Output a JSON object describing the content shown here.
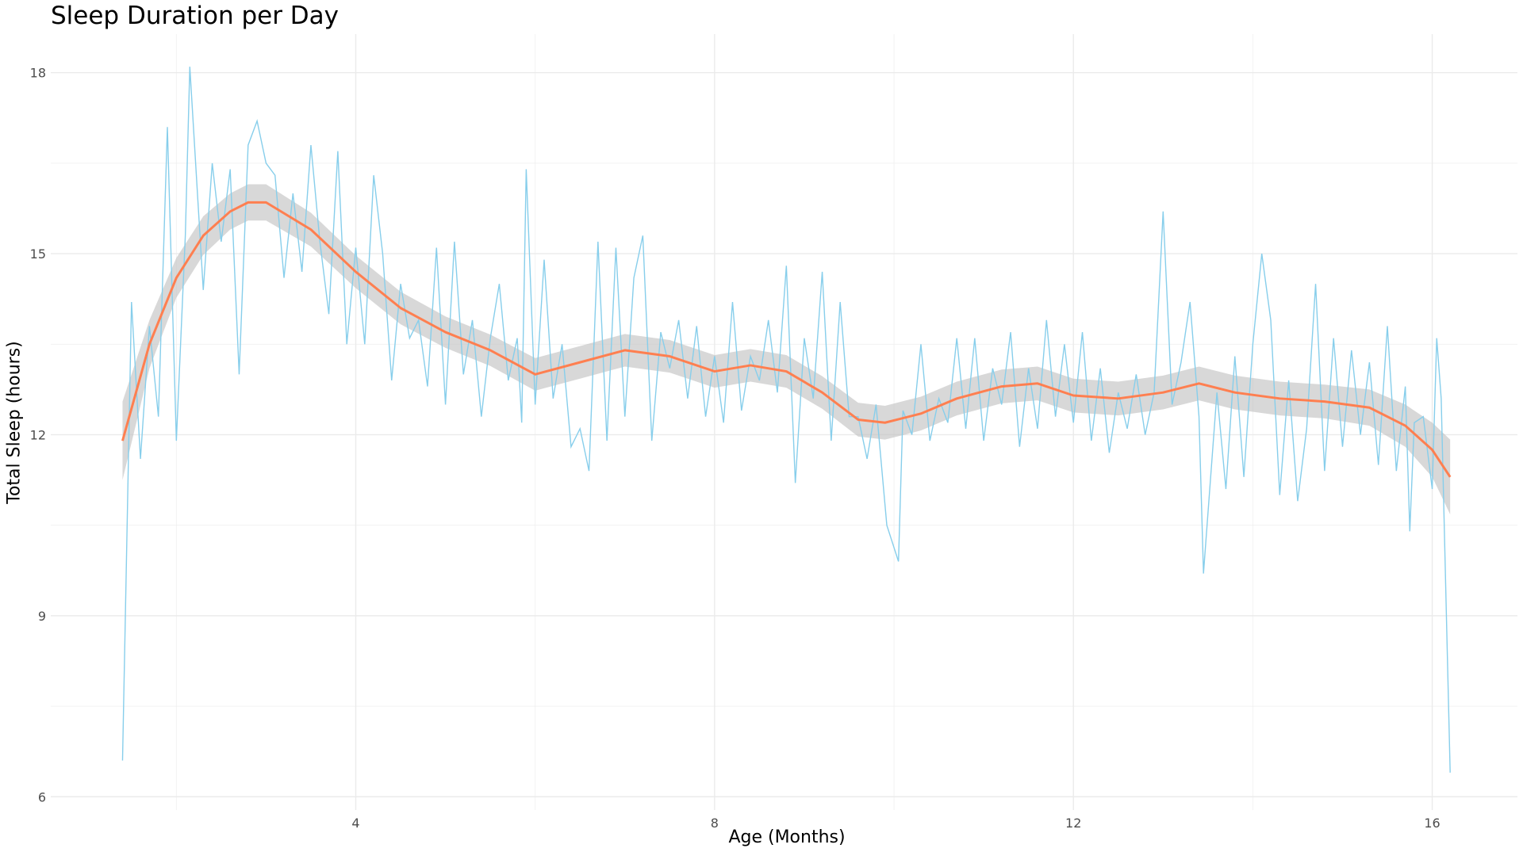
{
  "chart_data": {
    "type": "line",
    "title": "Sleep Duration per Day",
    "xlabel": "Age (Months)",
    "ylabel": "Total Sleep (hours)",
    "xlim": [
      0.6,
      16.95
    ],
    "ylim": [
      5.78,
      18.64
    ],
    "x_ticks": [
      4,
      8,
      12,
      16
    ],
    "y_ticks": [
      6,
      9,
      12,
      15,
      18
    ],
    "x_tick_labels": [
      "4",
      "8",
      "12",
      "16"
    ],
    "y_tick_labels": [
      "6",
      "9",
      "12",
      "15",
      "18"
    ],
    "grid": true,
    "colors": {
      "raw": "#87CEEB",
      "smooth": "#FF7F50",
      "band": "#BEBEBE",
      "grid": "#EBEBEB"
    },
    "series": [
      {
        "kind": "raw-line",
        "points": [
          [
            1.4,
            6.6
          ],
          [
            1.5,
            14.2
          ],
          [
            1.6,
            11.6
          ],
          [
            1.7,
            13.8
          ],
          [
            1.8,
            12.3
          ],
          [
            1.9,
            17.1
          ],
          [
            2.0,
            11.9
          ],
          [
            2.1,
            15.3
          ],
          [
            2.15,
            18.1
          ],
          [
            2.3,
            14.4
          ],
          [
            2.4,
            16.5
          ],
          [
            2.5,
            15.2
          ],
          [
            2.6,
            16.4
          ],
          [
            2.7,
            13.0
          ],
          [
            2.8,
            16.8
          ],
          [
            2.9,
            17.2
          ],
          [
            3.0,
            16.5
          ],
          [
            3.1,
            16.3
          ],
          [
            3.2,
            14.6
          ],
          [
            3.3,
            16.0
          ],
          [
            3.4,
            14.7
          ],
          [
            3.5,
            16.8
          ],
          [
            3.6,
            15.2
          ],
          [
            3.7,
            14.0
          ],
          [
            3.8,
            16.7
          ],
          [
            3.9,
            13.5
          ],
          [
            4.0,
            15.1
          ],
          [
            4.1,
            13.5
          ],
          [
            4.2,
            16.3
          ],
          [
            4.3,
            15.0
          ],
          [
            4.4,
            12.9
          ],
          [
            4.5,
            14.5
          ],
          [
            4.6,
            13.6
          ],
          [
            4.7,
            13.9
          ],
          [
            4.8,
            12.8
          ],
          [
            4.9,
            15.1
          ],
          [
            5.0,
            12.5
          ],
          [
            5.1,
            15.2
          ],
          [
            5.2,
            13.0
          ],
          [
            5.3,
            13.9
          ],
          [
            5.4,
            12.3
          ],
          [
            5.5,
            13.6
          ],
          [
            5.6,
            14.5
          ],
          [
            5.7,
            12.9
          ],
          [
            5.8,
            13.6
          ],
          [
            5.85,
            12.2
          ],
          [
            5.9,
            16.4
          ],
          [
            6.0,
            12.5
          ],
          [
            6.1,
            14.9
          ],
          [
            6.2,
            12.6
          ],
          [
            6.3,
            13.5
          ],
          [
            6.4,
            11.8
          ],
          [
            6.5,
            12.1
          ],
          [
            6.6,
            11.4
          ],
          [
            6.7,
            15.2
          ],
          [
            6.8,
            11.9
          ],
          [
            6.9,
            15.1
          ],
          [
            7.0,
            12.3
          ],
          [
            7.1,
            14.6
          ],
          [
            7.2,
            15.3
          ],
          [
            7.3,
            11.9
          ],
          [
            7.4,
            13.7
          ],
          [
            7.5,
            13.1
          ],
          [
            7.6,
            13.9
          ],
          [
            7.7,
            12.6
          ],
          [
            7.8,
            13.8
          ],
          [
            7.9,
            12.3
          ],
          [
            8.0,
            13.3
          ],
          [
            8.1,
            12.2
          ],
          [
            8.2,
            14.2
          ],
          [
            8.3,
            12.4
          ],
          [
            8.4,
            13.3
          ],
          [
            8.5,
            12.9
          ],
          [
            8.6,
            13.9
          ],
          [
            8.7,
            12.7
          ],
          [
            8.8,
            14.8
          ],
          [
            8.9,
            11.2
          ],
          [
            9.0,
            13.6
          ],
          [
            9.1,
            12.6
          ],
          [
            9.2,
            14.7
          ],
          [
            9.3,
            11.9
          ],
          [
            9.4,
            14.2
          ],
          [
            9.5,
            12.3
          ],
          [
            9.6,
            12.3
          ],
          [
            9.7,
            11.6
          ],
          [
            9.8,
            12.5
          ],
          [
            9.92,
            10.5
          ],
          [
            10.05,
            9.9
          ],
          [
            10.1,
            12.4
          ],
          [
            10.2,
            12.0
          ],
          [
            10.3,
            13.5
          ],
          [
            10.4,
            11.9
          ],
          [
            10.5,
            12.6
          ],
          [
            10.6,
            12.2
          ],
          [
            10.7,
            13.6
          ],
          [
            10.8,
            12.1
          ],
          [
            10.9,
            13.6
          ],
          [
            11.0,
            11.9
          ],
          [
            11.1,
            13.1
          ],
          [
            11.2,
            12.5
          ],
          [
            11.3,
            13.7
          ],
          [
            11.4,
            11.8
          ],
          [
            11.5,
            13.1
          ],
          [
            11.6,
            12.1
          ],
          [
            11.7,
            13.9
          ],
          [
            11.8,
            12.3
          ],
          [
            11.9,
            13.5
          ],
          [
            12.0,
            12.2
          ],
          [
            12.1,
            13.7
          ],
          [
            12.2,
            11.9
          ],
          [
            12.3,
            13.1
          ],
          [
            12.4,
            11.7
          ],
          [
            12.5,
            12.7
          ],
          [
            12.6,
            12.1
          ],
          [
            12.7,
            13.0
          ],
          [
            12.8,
            12.0
          ],
          [
            12.9,
            12.7
          ],
          [
            13.0,
            15.7
          ],
          [
            13.1,
            12.5
          ],
          [
            13.2,
            13.2
          ],
          [
            13.3,
            14.2
          ],
          [
            13.4,
            12.3
          ],
          [
            13.45,
            9.7
          ],
          [
            13.6,
            12.7
          ],
          [
            13.7,
            11.1
          ],
          [
            13.8,
            13.3
          ],
          [
            13.9,
            11.3
          ],
          [
            14.0,
            13.5
          ],
          [
            14.1,
            15.0
          ],
          [
            14.2,
            13.9
          ],
          [
            14.3,
            11.0
          ],
          [
            14.4,
            12.9
          ],
          [
            14.5,
            10.9
          ],
          [
            14.6,
            12.1
          ],
          [
            14.7,
            14.5
          ],
          [
            14.8,
            11.4
          ],
          [
            14.9,
            13.6
          ],
          [
            15.0,
            11.8
          ],
          [
            15.1,
            13.4
          ],
          [
            15.2,
            12.0
          ],
          [
            15.3,
            13.2
          ],
          [
            15.4,
            11.5
          ],
          [
            15.5,
            13.8
          ],
          [
            15.6,
            11.4
          ],
          [
            15.7,
            12.8
          ],
          [
            15.75,
            10.4
          ],
          [
            15.8,
            12.2
          ],
          [
            15.9,
            12.3
          ],
          [
            16.0,
            11.1
          ],
          [
            16.05,
            13.6
          ],
          [
            16.1,
            12.6
          ],
          [
            16.2,
            6.4
          ]
        ]
      },
      {
        "kind": "smooth-line-with-ci",
        "points": [
          [
            1.4,
            11.9
          ],
          [
            1.7,
            13.5
          ],
          [
            2.0,
            14.6
          ],
          [
            2.3,
            15.3
          ],
          [
            2.6,
            15.7
          ],
          [
            2.8,
            15.85
          ],
          [
            3.0,
            15.85
          ],
          [
            3.5,
            15.4
          ],
          [
            4.0,
            14.7
          ],
          [
            4.5,
            14.1
          ],
          [
            5.0,
            13.7
          ],
          [
            5.5,
            13.4
          ],
          [
            6.0,
            13.0
          ],
          [
            6.5,
            13.2
          ],
          [
            7.0,
            13.4
          ],
          [
            7.5,
            13.3
          ],
          [
            8.0,
            13.05
          ],
          [
            8.4,
            13.15
          ],
          [
            8.8,
            13.05
          ],
          [
            9.2,
            12.7
          ],
          [
            9.6,
            12.25
          ],
          [
            9.9,
            12.2
          ],
          [
            10.3,
            12.35
          ],
          [
            10.7,
            12.6
          ],
          [
            11.2,
            12.8
          ],
          [
            11.6,
            12.85
          ],
          [
            12.0,
            12.65
          ],
          [
            12.5,
            12.6
          ],
          [
            13.0,
            12.7
          ],
          [
            13.4,
            12.85
          ],
          [
            13.8,
            12.7
          ],
          [
            14.3,
            12.6
          ],
          [
            14.8,
            12.55
          ],
          [
            15.3,
            12.45
          ],
          [
            15.7,
            12.15
          ],
          [
            16.0,
            11.75
          ],
          [
            16.2,
            11.3
          ]
        ],
        "ci_halfwidth": [
          0.65,
          0.4,
          0.33,
          0.32,
          0.3,
          0.3,
          0.3,
          0.28,
          0.27,
          0.27,
          0.26,
          0.26,
          0.27,
          0.27,
          0.27,
          0.27,
          0.27,
          0.27,
          0.27,
          0.27,
          0.28,
          0.28,
          0.28,
          0.28,
          0.28,
          0.28,
          0.28,
          0.28,
          0.28,
          0.28,
          0.28,
          0.28,
          0.28,
          0.3,
          0.35,
          0.45,
          0.62
        ]
      }
    ]
  }
}
